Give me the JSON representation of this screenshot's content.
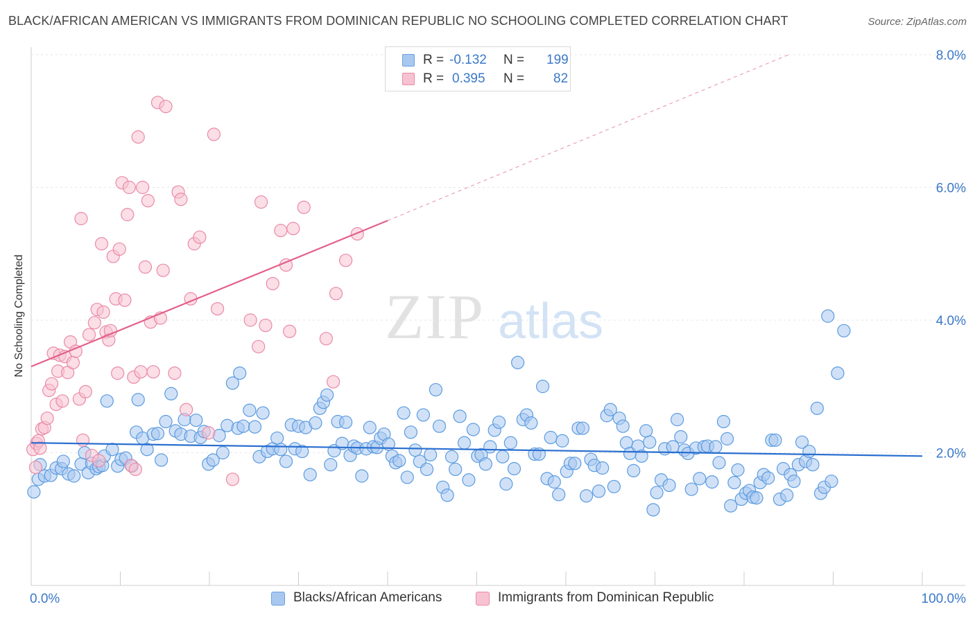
{
  "title": "BLACK/AFRICAN AMERICAN VS IMMIGRANTS FROM DOMINICAN REPUBLIC NO SCHOOLING COMPLETED CORRELATION CHART",
  "source": "Source: ZipAtlas.com",
  "watermark": {
    "zip": "ZIP",
    "atlas": "atlas"
  },
  "legend": {
    "rows": [
      {
        "r_label": "R =",
        "r_value": "-0.132",
        "n_label": "N =",
        "n_value": "199",
        "color": "#a9c8f0",
        "border": "#6a9fe0"
      },
      {
        "r_label": "R =",
        "r_value": "0.395",
        "n_label": "N =",
        "n_value": "82",
        "color": "#f7c2d2",
        "border": "#e98aa8"
      }
    ]
  },
  "bottom_legend": [
    {
      "label": "Blacks/African Americans",
      "color": "#a9c8f0",
      "border": "#6a9fe0"
    },
    {
      "label": "Immigrants from Dominican Republic",
      "color": "#f7c2d2",
      "border": "#e98aa8"
    }
  ],
  "chart_data": {
    "type": "scatter",
    "title": "BLACK/AFRICAN AMERICAN VS IMMIGRANTS FROM DOMINICAN REPUBLIC NO SCHOOLING COMPLETED CORRELATION CHART",
    "xlabel": "",
    "ylabel": "No Schooling Completed",
    "xlim": [
      0,
      100
    ],
    "ylim": [
      0,
      8
    ],
    "x_tick_labels": [
      "0.0%",
      "100.0%"
    ],
    "y_ticks": [
      2,
      4,
      6,
      8
    ],
    "y_tick_labels": [
      "2.0%",
      "4.0%",
      "6.0%",
      "8.0%"
    ],
    "grid": true,
    "legend_position": "top-center",
    "series": [
      {
        "name": "Blacks/African Americans",
        "color": "#5b9be0",
        "fill": "#a9c8f0",
        "trend": {
          "x": [
            0,
            100
          ],
          "y": [
            2.15,
            1.95
          ],
          "color": "#2a6fd0"
        },
        "points": [
          [
            0.3,
            1.41
          ],
          [
            0.8,
            1.6
          ],
          [
            1.0,
            1.82
          ],
          [
            1.5,
            1.65
          ],
          [
            2.2,
            1.66
          ],
          [
            2.8,
            1.77
          ],
          [
            3.4,
            1.76
          ],
          [
            3.6,
            1.87
          ],
          [
            4.2,
            1.68
          ],
          [
            4.8,
            1.65
          ],
          [
            5.6,
            1.83
          ],
          [
            6.0,
            2.0
          ],
          [
            6.4,
            1.7
          ],
          [
            6.8,
            1.84
          ],
          [
            7.3,
            1.76
          ],
          [
            7.6,
            1.79
          ],
          [
            8.0,
            1.81
          ],
          [
            8.2,
            1.95
          ],
          [
            8.5,
            2.78
          ],
          [
            9.1,
            2.05
          ],
          [
            9.7,
            1.8
          ],
          [
            10.1,
            1.9
          ],
          [
            10.6,
            1.92
          ],
          [
            11.3,
            1.8
          ],
          [
            11.8,
            2.31
          ],
          [
            12.0,
            2.8
          ],
          [
            12.5,
            2.22
          ],
          [
            13.0,
            2.05
          ],
          [
            13.7,
            2.28
          ],
          [
            14.2,
            2.29
          ],
          [
            14.6,
            1.89
          ],
          [
            15.1,
            2.47
          ],
          [
            15.7,
            2.89
          ],
          [
            16.2,
            2.33
          ],
          [
            16.8,
            2.28
          ],
          [
            17.2,
            2.5
          ],
          [
            17.9,
            2.25
          ],
          [
            18.5,
            2.49
          ],
          [
            19.0,
            2.23
          ],
          [
            19.4,
            2.32
          ],
          [
            19.9,
            1.83
          ],
          [
            20.4,
            1.89
          ],
          [
            21.1,
            2.26
          ],
          [
            21.5,
            2.0
          ],
          [
            22.0,
            2.41
          ],
          [
            22.6,
            3.05
          ],
          [
            23.2,
            2.37
          ],
          [
            23.4,
            3.2
          ],
          [
            23.8,
            2.4
          ],
          [
            24.5,
            2.64
          ],
          [
            25.1,
            2.39
          ],
          [
            25.6,
            1.94
          ],
          [
            26.0,
            2.6
          ],
          [
            26.5,
            2.02
          ],
          [
            27.1,
            2.06
          ],
          [
            27.6,
            2.22
          ],
          [
            28.0,
            2.05
          ],
          [
            28.6,
            1.87
          ],
          [
            29.2,
            2.42
          ],
          [
            29.6,
            2.06
          ],
          [
            30.0,
            2.4
          ],
          [
            30.4,
            2.02
          ],
          [
            30.8,
            2.38
          ],
          [
            31.3,
            1.67
          ],
          [
            31.9,
            2.45
          ],
          [
            32.4,
            2.67
          ],
          [
            32.8,
            2.76
          ],
          [
            33.2,
            2.87
          ],
          [
            33.6,
            1.82
          ],
          [
            34.0,
            2.03
          ],
          [
            34.4,
            2.47
          ],
          [
            34.9,
            2.14
          ],
          [
            35.3,
            2.46
          ],
          [
            35.8,
            1.96
          ],
          [
            36.2,
            2.1
          ],
          [
            36.6,
            2.07
          ],
          [
            37.1,
            1.65
          ],
          [
            37.6,
            2.06
          ],
          [
            38.0,
            2.38
          ],
          [
            38.4,
            2.09
          ],
          [
            38.8,
            2.08
          ],
          [
            39.2,
            2.22
          ],
          [
            39.6,
            2.28
          ],
          [
            40.1,
            2.13
          ],
          [
            40.5,
            1.95
          ],
          [
            40.9,
            1.85
          ],
          [
            41.3,
            1.88
          ],
          [
            41.8,
            2.6
          ],
          [
            42.2,
            1.63
          ],
          [
            42.6,
            2.31
          ],
          [
            43.1,
            2.04
          ],
          [
            43.6,
            1.87
          ],
          [
            44.0,
            2.57
          ],
          [
            44.4,
            1.75
          ],
          [
            44.8,
            1.97
          ],
          [
            45.4,
            2.95
          ],
          [
            45.8,
            2.4
          ],
          [
            46.2,
            1.48
          ],
          [
            46.7,
            1.36
          ],
          [
            47.2,
            1.94
          ],
          [
            47.6,
            1.75
          ],
          [
            48.1,
            2.55
          ],
          [
            48.6,
            2.15
          ],
          [
            49.1,
            1.59
          ],
          [
            49.6,
            2.35
          ],
          [
            50.1,
            1.95
          ],
          [
            50.5,
            1.97
          ],
          [
            51.0,
            1.83
          ],
          [
            51.5,
            2.09
          ],
          [
            52.0,
            2.34
          ],
          [
            52.5,
            2.46
          ],
          [
            52.9,
            1.94
          ],
          [
            53.3,
            1.53
          ],
          [
            53.8,
            2.15
          ],
          [
            54.2,
            1.76
          ],
          [
            54.6,
            3.36
          ],
          [
            55.2,
            2.5
          ],
          [
            55.6,
            2.57
          ],
          [
            56.1,
            2.45
          ],
          [
            56.5,
            1.98
          ],
          [
            57.0,
            1.98
          ],
          [
            57.4,
            3.0
          ],
          [
            57.9,
            1.61
          ],
          [
            58.3,
            2.23
          ],
          [
            58.7,
            1.56
          ],
          [
            59.2,
            1.37
          ],
          [
            59.6,
            2.18
          ],
          [
            60.1,
            1.72
          ],
          [
            60.5,
            1.84
          ],
          [
            61.0,
            1.84
          ],
          [
            61.4,
            2.37
          ],
          [
            61.9,
            2.37
          ],
          [
            62.3,
            1.35
          ],
          [
            62.8,
            1.9
          ],
          [
            63.2,
            1.81
          ],
          [
            63.7,
            1.42
          ],
          [
            64.1,
            1.77
          ],
          [
            64.6,
            2.56
          ],
          [
            65.0,
            2.65
          ],
          [
            65.4,
            1.49
          ],
          [
            66.0,
            2.52
          ],
          [
            66.4,
            2.4
          ],
          [
            66.8,
            2.15
          ],
          [
            67.2,
            1.99
          ],
          [
            67.6,
            1.73
          ],
          [
            68.1,
            2.1
          ],
          [
            68.5,
            1.95
          ],
          [
            69.0,
            2.33
          ],
          [
            69.4,
            2.16
          ],
          [
            69.8,
            1.14
          ],
          [
            70.2,
            1.4
          ],
          [
            70.7,
            1.59
          ],
          [
            71.1,
            2.06
          ],
          [
            71.6,
            1.51
          ],
          [
            72.0,
            2.09
          ],
          [
            72.5,
            2.5
          ],
          [
            72.9,
            2.24
          ],
          [
            73.3,
            2.04
          ],
          [
            73.7,
            1.99
          ],
          [
            74.1,
            1.45
          ],
          [
            74.6,
            2.07
          ],
          [
            75.0,
            1.61
          ],
          [
            75.5,
            2.09
          ],
          [
            75.9,
            2.1
          ],
          [
            76.4,
            1.56
          ],
          [
            76.8,
            2.09
          ],
          [
            77.2,
            1.85
          ],
          [
            77.7,
            2.47
          ],
          [
            78.1,
            2.21
          ],
          [
            78.5,
            1.2
          ],
          [
            78.9,
            1.55
          ],
          [
            79.3,
            1.74
          ],
          [
            79.7,
            1.3
          ],
          [
            80.2,
            1.39
          ],
          [
            80.6,
            1.43
          ],
          [
            81.0,
            1.33
          ],
          [
            81.4,
            1.32
          ],
          [
            81.8,
            1.55
          ],
          [
            82.2,
            1.67
          ],
          [
            82.7,
            1.62
          ],
          [
            83.1,
            2.19
          ],
          [
            83.5,
            2.19
          ],
          [
            84.0,
            1.3
          ],
          [
            84.4,
            1.76
          ],
          [
            84.8,
            1.36
          ],
          [
            85.2,
            1.67
          ],
          [
            85.6,
            1.57
          ],
          [
            86.1,
            1.82
          ],
          [
            86.5,
            2.16
          ],
          [
            86.9,
            1.87
          ],
          [
            87.3,
            2.02
          ],
          [
            87.7,
            1.82
          ],
          [
            88.2,
            2.67
          ],
          [
            88.6,
            1.39
          ],
          [
            89.0,
            1.48
          ],
          [
            89.4,
            4.06
          ],
          [
            89.8,
            1.57
          ],
          [
            90.5,
            3.2
          ],
          [
            91.2,
            3.84
          ]
        ]
      },
      {
        "name": "Immigrants from Dominican Republic",
        "color": "#e98aa8",
        "fill": "#f7c2d2",
        "trend": {
          "x": [
            0,
            40
          ],
          "y": [
            3.3,
            5.5
          ],
          "color": "#e35f8a"
        },
        "trend_dashed": {
          "x": [
            40,
            85
          ],
          "y": [
            5.5,
            8.0
          ],
          "color": "#e98aa8"
        },
        "points": [
          [
            0.2,
            2.05
          ],
          [
            0.5,
            1.78
          ],
          [
            0.6,
            2.14
          ],
          [
            0.8,
            2.18
          ],
          [
            1.0,
            2.07
          ],
          [
            1.2,
            2.36
          ],
          [
            1.5,
            2.38
          ],
          [
            1.8,
            2.52
          ],
          [
            2.0,
            2.94
          ],
          [
            2.3,
            3.04
          ],
          [
            2.5,
            3.5
          ],
          [
            2.8,
            2.73
          ],
          [
            3.0,
            3.23
          ],
          [
            3.2,
            3.47
          ],
          [
            3.5,
            2.78
          ],
          [
            3.8,
            3.45
          ],
          [
            4.1,
            3.21
          ],
          [
            4.4,
            3.67
          ],
          [
            4.7,
            3.36
          ],
          [
            5.0,
            3.53
          ],
          [
            5.4,
            2.81
          ],
          [
            5.6,
            5.53
          ],
          [
            5.8,
            2.19
          ],
          [
            6.1,
            2.92
          ],
          [
            6.5,
            3.78
          ],
          [
            6.8,
            1.96
          ],
          [
            7.1,
            3.96
          ],
          [
            7.4,
            4.16
          ],
          [
            7.6,
            1.88
          ],
          [
            7.9,
            5.15
          ],
          [
            8.1,
            4.12
          ],
          [
            8.4,
            3.82
          ],
          [
            8.7,
            3.7
          ],
          [
            8.9,
            3.84
          ],
          [
            9.2,
            4.96
          ],
          [
            9.5,
            4.32
          ],
          [
            9.7,
            3.2
          ],
          [
            9.9,
            5.07
          ],
          [
            10.2,
            6.07
          ],
          [
            10.5,
            4.3
          ],
          [
            10.8,
            5.59
          ],
          [
            11.0,
            6.0
          ],
          [
            11.2,
            1.81
          ],
          [
            11.5,
            3.14
          ],
          [
            11.7,
            1.75
          ],
          [
            12.0,
            6.76
          ],
          [
            12.3,
            3.22
          ],
          [
            12.5,
            6.0
          ],
          [
            12.8,
            4.8
          ],
          [
            13.1,
            5.8
          ],
          [
            13.4,
            3.97
          ],
          [
            13.7,
            3.22
          ],
          [
            14.2,
            7.28
          ],
          [
            14.5,
            4.03
          ],
          [
            14.8,
            4.75
          ],
          [
            15.1,
            7.22
          ],
          [
            16.1,
            3.2
          ],
          [
            16.5,
            5.93
          ],
          [
            16.8,
            5.82
          ],
          [
            17.4,
            2.65
          ],
          [
            17.9,
            4.32
          ],
          [
            18.3,
            5.15
          ],
          [
            18.9,
            5.25
          ],
          [
            19.9,
            2.3
          ],
          [
            20.5,
            6.8
          ],
          [
            20.9,
            4.17
          ],
          [
            22.6,
            1.6
          ],
          [
            24.6,
            4.0
          ],
          [
            25.5,
            3.6
          ],
          [
            25.8,
            5.78
          ],
          [
            26.3,
            3.92
          ],
          [
            27.1,
            4.55
          ],
          [
            28.0,
            5.35
          ],
          [
            28.6,
            4.83
          ],
          [
            29.0,
            3.83
          ],
          [
            29.4,
            5.38
          ],
          [
            30.6,
            5.7
          ],
          [
            33.1,
            3.72
          ],
          [
            33.9,
            3.07
          ],
          [
            34.2,
            4.4
          ],
          [
            35.3,
            4.9
          ],
          [
            36.6,
            5.3
          ]
        ]
      }
    ]
  }
}
